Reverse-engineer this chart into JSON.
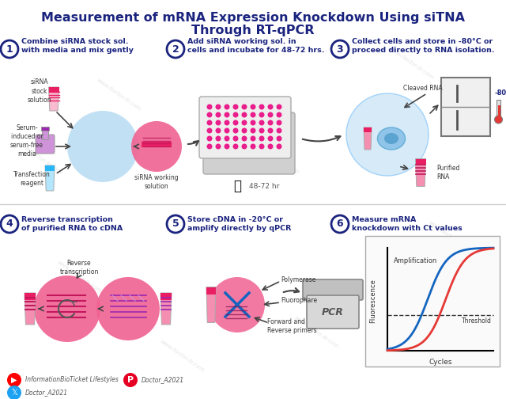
{
  "title_line1": "Measurement of mRNA Expression Knockdown Using siTNA",
  "title_line2": "Through RT-qPCR",
  "title_color": "#1a237e",
  "bg_color": "#ffffff",
  "dark_blue": "#1a237e",
  "light_blue": "#a8d4f0",
  "pink_main": "#e91e8c",
  "pink_light": "#f48fb1",
  "pink_pale": "#fce4ec",
  "purple_light": "#ce93d8",
  "blue_light2": "#b3e5fc",
  "step1_title": "Combine siRNA stock sol.\nwith media and mix gently",
  "step2_title": "Add siRNA working sol. in\ncells and incubate for 48-72 hrs.",
  "step3_title": "Collect cells and store in -80°C or\nproceed directly to RNA isolation.",
  "step4_title": "Reverse transcription\nof purified RNA to cDNA",
  "step5_title": "Store cDNA in -20°C or\namplify directly by qPCR",
  "step6_title": "Measure mRNA\nknockdown with Ct values",
  "label_sirna_stock": "siRNA\nstock\nsolution",
  "label_serum": "Serum-\ninduced or\nserum-free\nmedia",
  "label_transfection": "Transfection\nreagent",
  "label_sirna_working": "siRNA working\nsolution",
  "label_48hr": "48-72 hr",
  "label_cleaved": "Cleaved RNA",
  "label_minus80": "-80°C",
  "label_purified": "Purified\nRNA",
  "label_reverse_transcription": "Reverse\ntranscription",
  "label_polymerase": "Polymerase",
  "label_fluorophore": "Fluorophare",
  "label_forward_reverse": "Forward and\nReverse primers",
  "label_amplification": "Amplification",
  "label_threshold": "Threshold",
  "label_fluorescence": "Fluorescence",
  "label_cycles": "Cycles",
  "watermark": "www.doctor-dr.com",
  "social_yt": "InformationBioTicket Lifestyles",
  "social_pin": "Doctor_A2021",
  "social_tw": "Doctor_A2021",
  "blue_curve_color": "#1565c0",
  "red_curve_color": "#e53935"
}
